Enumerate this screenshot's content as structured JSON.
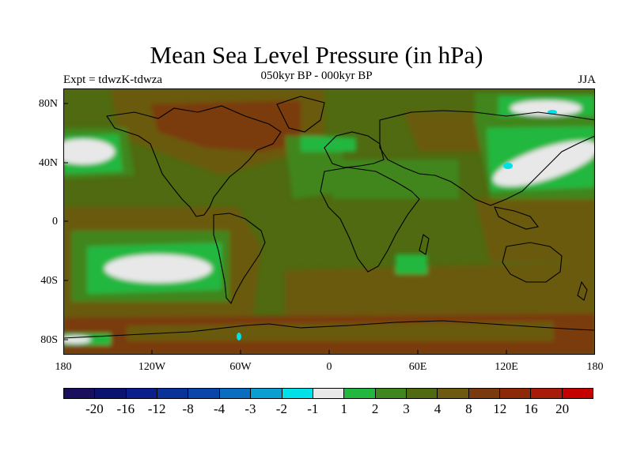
{
  "title": "Mean Sea Level Pressure (in hPa)",
  "subtitle_left": "Expt = tdwzK-tdwza",
  "subtitle_center": "050kyr BP - 000kyr BP",
  "subtitle_right": "JJA",
  "lat_labels": [
    "80N",
    "40N",
    "0",
    "40S",
    "80S"
  ],
  "lon_labels": [
    "180",
    "120W",
    "60W",
    "0",
    "60E",
    "120E",
    "180"
  ],
  "colorbar": {
    "colors": [
      "#1a0f5c",
      "#0a1470",
      "#0b1f8c",
      "#0a3399",
      "#0a46a8",
      "#0a6ec0",
      "#0a9ed1",
      "#00e0e8",
      "#e8e8e8",
      "#22b840",
      "#40861e",
      "#4f6a10",
      "#6b5a10",
      "#7a3a10",
      "#8c2a08",
      "#a81a0a",
      "#c40000"
    ],
    "labels": [
      "-20",
      "-16",
      "-12",
      "-8",
      "-4",
      "-3",
      "-2",
      "-1",
      "1",
      "2",
      "3",
      "4",
      "8",
      "12",
      "16",
      "20"
    ]
  },
  "colors": {
    "land_line": "#000000",
    "base_field": "#4f6a10",
    "high": "#6b5a10",
    "higher": "#7a3a10",
    "green2": "#40861e",
    "green1": "#22b840",
    "near_zero": "#e8e8e8",
    "cyan": "#00e0e8"
  }
}
